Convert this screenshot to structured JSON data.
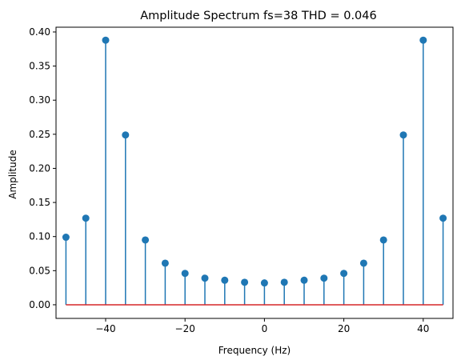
{
  "chart_data": {
    "type": "stem",
    "title": "Amplitude Spectrum fs=38  THD = 0.046",
    "xlabel": "Frequency (Hz)",
    "ylabel": "Amplitude",
    "xlim": [
      -52.5,
      47.5
    ],
    "ylim": [
      -0.02,
      0.407
    ],
    "xticks": [
      -40,
      -20,
      0,
      20,
      40
    ],
    "xtick_labels": [
      "−40",
      "−20",
      "0",
      "20",
      "40"
    ],
    "yticks": [
      0.0,
      0.05,
      0.1,
      0.15,
      0.2,
      0.25,
      0.3,
      0.35,
      0.4
    ],
    "ytick_labels": [
      "0.00",
      "0.05",
      "0.10",
      "0.15",
      "0.20",
      "0.25",
      "0.30",
      "0.35",
      "0.40"
    ],
    "grid": false,
    "x": [
      -50,
      -45,
      -40,
      -35,
      -30,
      -25,
      -20,
      -15,
      -10,
      -5,
      0,
      5,
      10,
      15,
      20,
      25,
      30,
      35,
      40,
      45
    ],
    "values": [
      0.099,
      0.127,
      0.388,
      0.249,
      0.095,
      0.061,
      0.046,
      0.039,
      0.036,
      0.033,
      0.032,
      0.033,
      0.036,
      0.039,
      0.046,
      0.061,
      0.095,
      0.249,
      0.388,
      0.127
    ],
    "colors": {
      "stem": "#1f77b4",
      "marker": "#1f77b4",
      "baseline": "#d62728"
    }
  }
}
